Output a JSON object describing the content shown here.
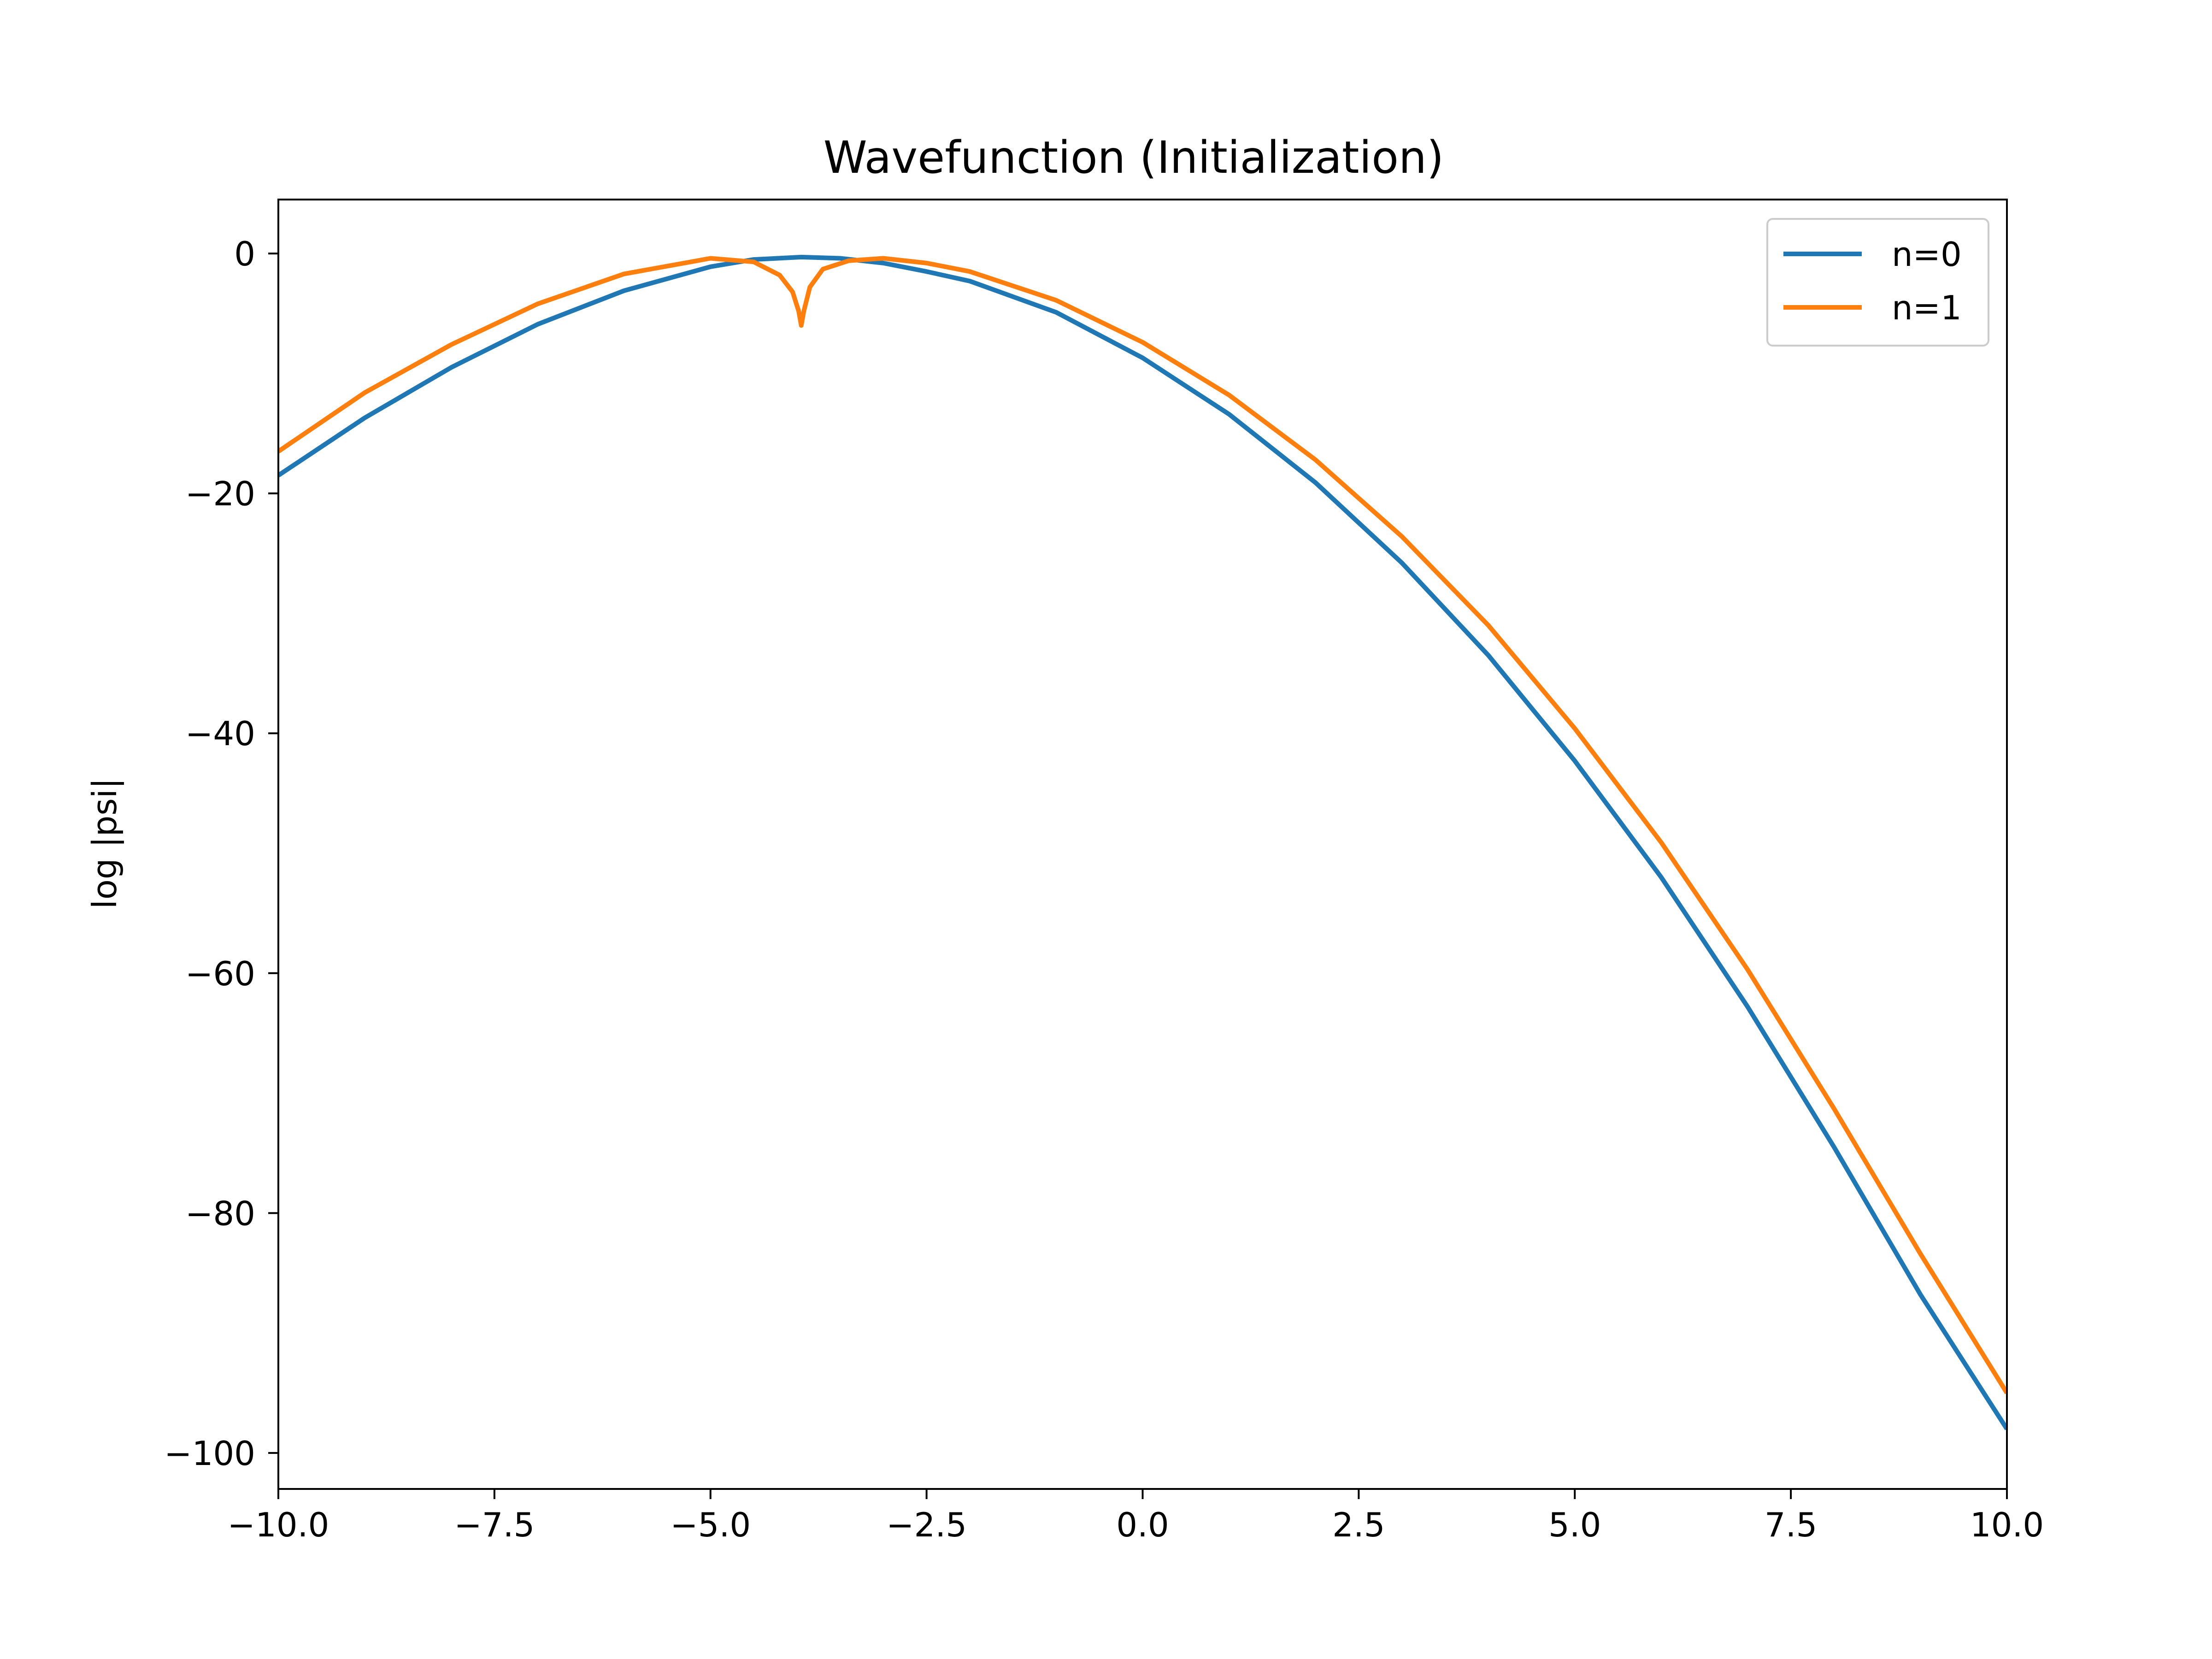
{
  "chart_data": {
    "type": "line",
    "title": "Wavefunction (Initialization)",
    "xlabel": "",
    "ylabel": "log |psi|",
    "xlim": [
      -10.0,
      10.0
    ],
    "ylim": [
      -103,
      4.5
    ],
    "x_ticks": [
      -10.0,
      -7.5,
      -5.0,
      -2.5,
      0.0,
      2.5,
      5.0,
      7.5,
      10.0
    ],
    "x_tick_labels": [
      "−10.0",
      "−7.5",
      "−5.0",
      "−2.5",
      "0.0",
      "2.5",
      "5.0",
      "7.5",
      "10.0"
    ],
    "y_ticks": [
      0,
      -20,
      -40,
      -60,
      -80,
      -100
    ],
    "y_tick_labels": [
      "0",
      "−20",
      "−40",
      "−60",
      "−80",
      "−100"
    ],
    "grid": false,
    "legend_position": "top-right",
    "series": [
      {
        "name": "n=0",
        "color": "#1f77b4",
        "x": [
          -10.0,
          -9.0,
          -8.0,
          -7.0,
          -6.0,
          -5.0,
          -4.5,
          -3.95,
          -3.5,
          -3.0,
          -2.5,
          -2.0,
          -1.0,
          0.0,
          1.0,
          2.0,
          3.0,
          4.0,
          5.0,
          6.0,
          7.0,
          8.0,
          9.0,
          10.0
        ],
        "y": [
          -18.5,
          -13.7,
          -9.5,
          -5.9,
          -3.1,
          -1.1,
          -0.5,
          -0.3,
          -0.4,
          -0.8,
          -1.5,
          -2.3,
          -4.9,
          -8.7,
          -13.4,
          -19.1,
          -25.8,
          -33.5,
          -42.3,
          -52.0,
          -62.8,
          -74.5,
          -86.8,
          -98.0
        ]
      },
      {
        "name": "n=1",
        "color": "#ff7f0e",
        "x": [
          -10.0,
          -9.0,
          -8.0,
          -7.0,
          -6.0,
          -5.0,
          -4.5,
          -4.2,
          -4.05,
          -3.98,
          -3.95,
          -3.92,
          -3.85,
          -3.7,
          -3.4,
          -3.0,
          -2.5,
          -2.0,
          -1.0,
          0.0,
          1.0,
          2.0,
          3.0,
          4.0,
          5.0,
          6.0,
          7.0,
          8.0,
          9.0,
          10.0
        ],
        "y": [
          -16.5,
          -11.6,
          -7.6,
          -4.2,
          -1.7,
          -0.4,
          -0.7,
          -1.8,
          -3.2,
          -4.8,
          -6.0,
          -4.8,
          -2.8,
          -1.3,
          -0.6,
          -0.4,
          -0.8,
          -1.5,
          -3.9,
          -7.4,
          -11.8,
          -17.2,
          -23.6,
          -31.0,
          -39.6,
          -49.1,
          -59.7,
          -71.3,
          -83.4,
          -95.0
        ]
      }
    ]
  }
}
